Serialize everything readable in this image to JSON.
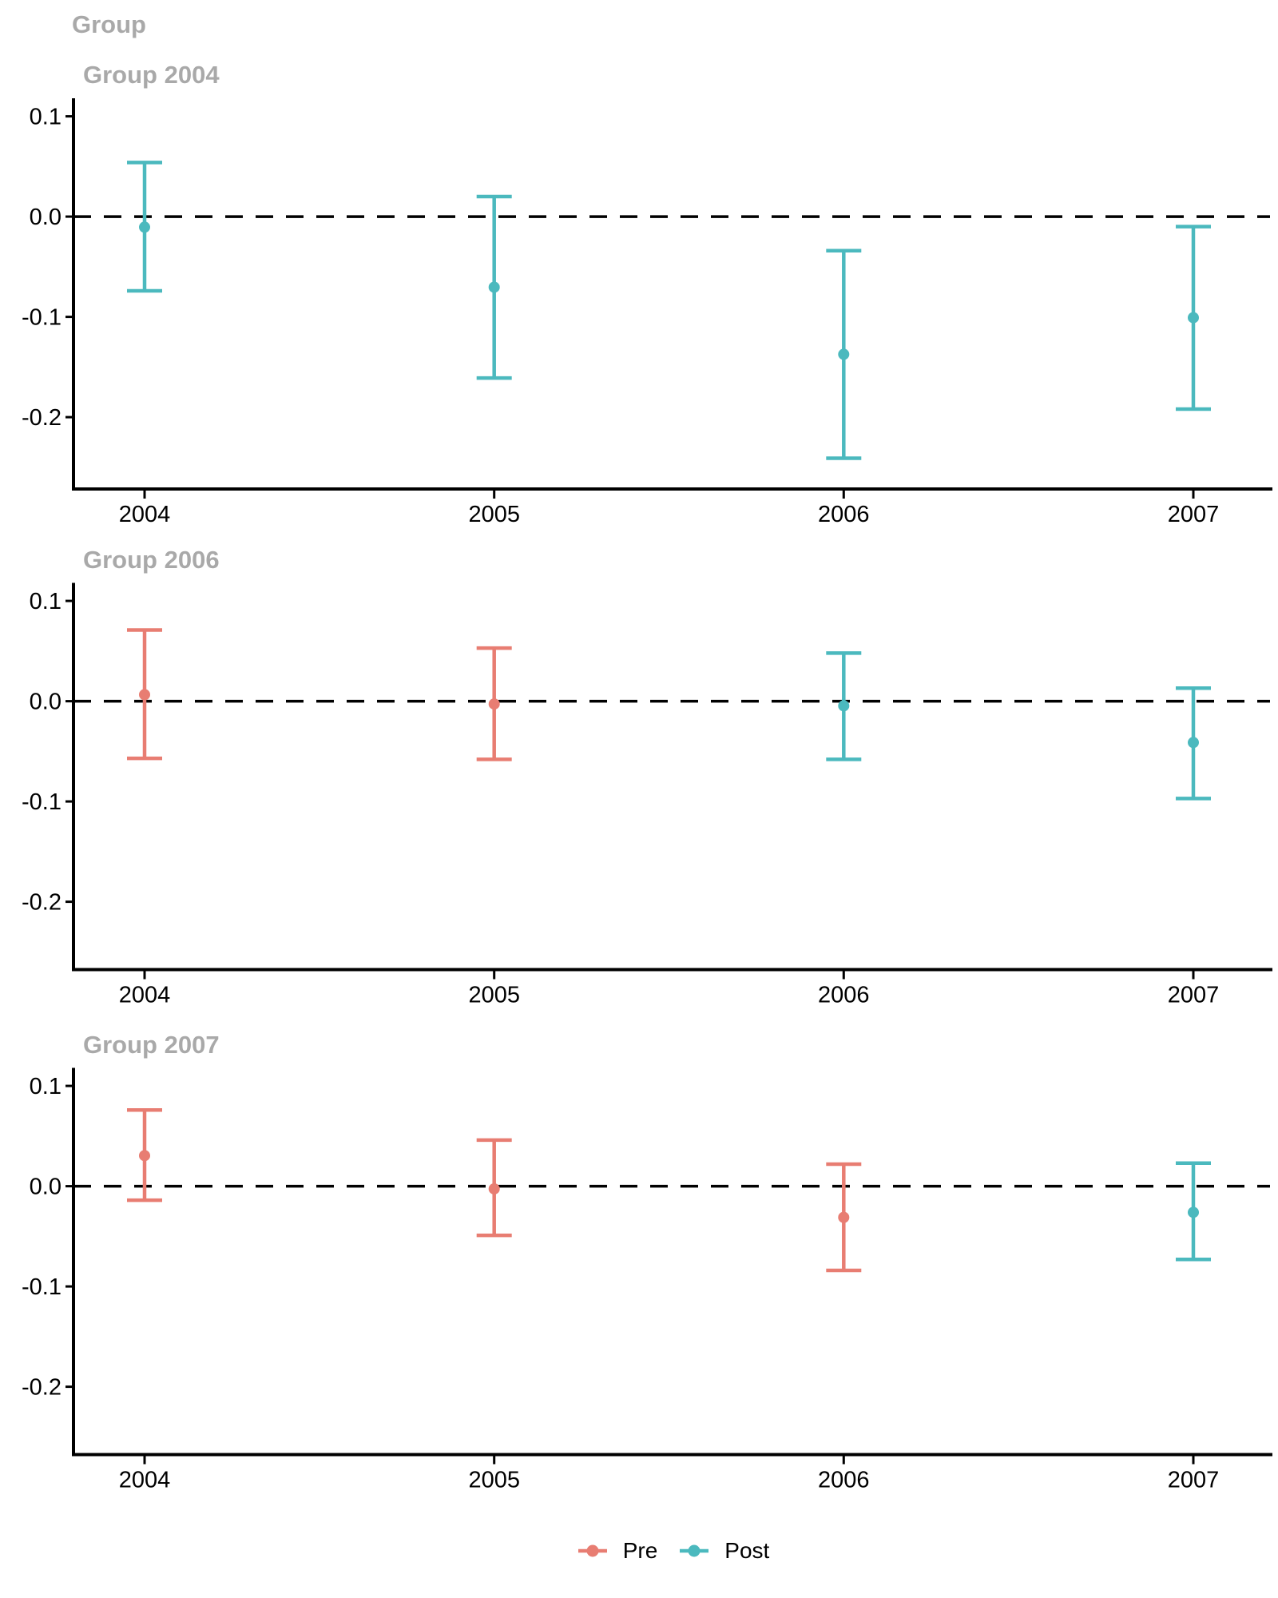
{
  "title": "Group",
  "colors": {
    "pre": "#E87D72",
    "post": "#4BB9BE",
    "facet_title_gray": "#A9A9A9",
    "axis": "#000000",
    "background": "#FFFFFF"
  },
  "legend": {
    "items": [
      {
        "label": "Pre",
        "key": "pre"
      },
      {
        "label": "Post",
        "key": "post"
      }
    ]
  },
  "chart_data": {
    "type": "errorbar",
    "title": "Group",
    "facet_by": "Group",
    "x_tick_labels": [
      "2004",
      "2005",
      "2006",
      "2007"
    ],
    "y_ticks": [
      0.1,
      0.0,
      -0.1,
      -0.2
    ],
    "y_tick_labels": [
      "0.1",
      "0.0",
      "-0.1",
      "-0.2"
    ],
    "ylim": [
      -0.27,
      0.118
    ],
    "zero_line": 0,
    "grid": "off",
    "legend_position": "bottom",
    "panels": [
      {
        "title": "Group 2004",
        "points": [
          {
            "year": "2004",
            "phase": "post",
            "est": -0.0105,
            "ci_low": -0.074,
            "ci_high": 0.054
          },
          {
            "year": "2005",
            "phase": "post",
            "est": -0.0704,
            "ci_low": -0.161,
            "ci_high": 0.02
          },
          {
            "year": "2006",
            "phase": "post",
            "est": -0.1373,
            "ci_low": -0.241,
            "ci_high": -0.034
          },
          {
            "year": "2007",
            "phase": "post",
            "est": -0.1008,
            "ci_low": -0.192,
            "ci_high": -0.01
          }
        ]
      },
      {
        "title": "Group 2006",
        "points": [
          {
            "year": "2004",
            "phase": "pre",
            "est": 0.0065,
            "ci_low": -0.057,
            "ci_high": 0.071
          },
          {
            "year": "2005",
            "phase": "pre",
            "est": -0.0028,
            "ci_low": -0.058,
            "ci_high": 0.053
          },
          {
            "year": "2006",
            "phase": "post",
            "est": -0.0046,
            "ci_low": -0.058,
            "ci_high": 0.048
          },
          {
            "year": "2007",
            "phase": "post",
            "est": -0.0412,
            "ci_low": -0.097,
            "ci_high": 0.013
          }
        ]
      },
      {
        "title": "Group 2007",
        "points": [
          {
            "year": "2004",
            "phase": "pre",
            "est": 0.0305,
            "ci_low": -0.014,
            "ci_high": 0.076
          },
          {
            "year": "2005",
            "phase": "pre",
            "est": -0.0027,
            "ci_low": -0.049,
            "ci_high": 0.046
          },
          {
            "year": "2006",
            "phase": "pre",
            "est": -0.0311,
            "ci_low": -0.084,
            "ci_high": 0.022
          },
          {
            "year": "2007",
            "phase": "post",
            "est": -0.0261,
            "ci_low": -0.073,
            "ci_high": 0.023
          }
        ]
      }
    ]
  }
}
